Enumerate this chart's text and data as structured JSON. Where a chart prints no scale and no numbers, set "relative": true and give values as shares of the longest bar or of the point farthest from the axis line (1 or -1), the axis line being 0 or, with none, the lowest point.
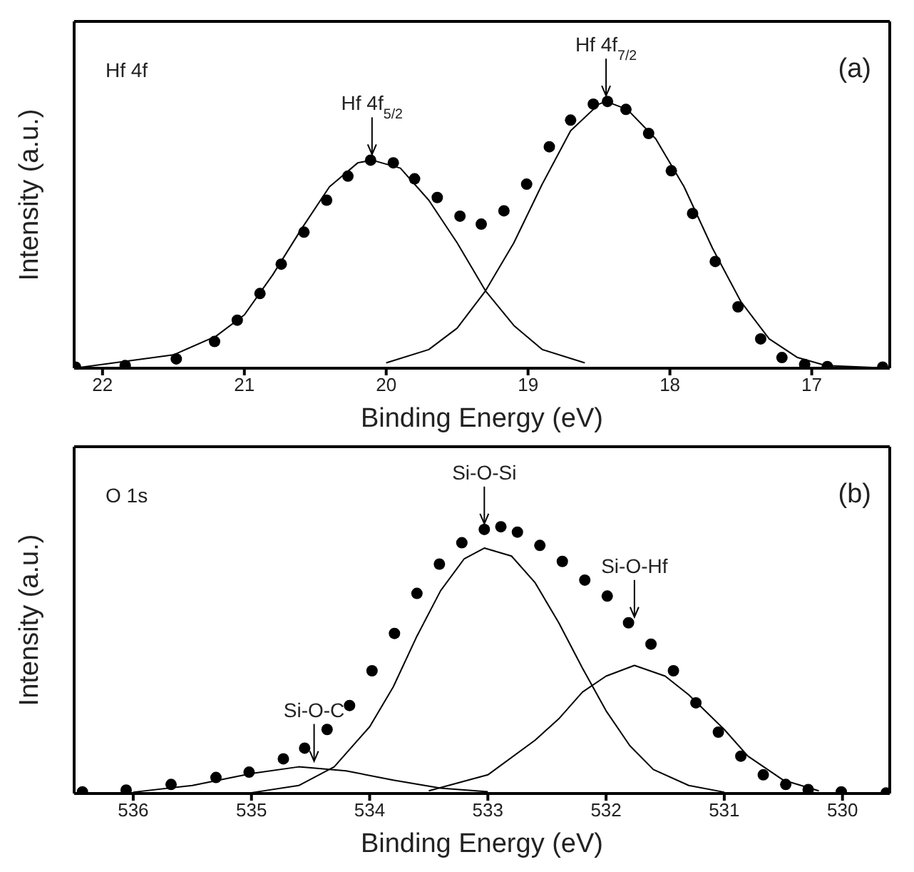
{
  "chart_data": [
    {
      "type": "scatter",
      "relative": true,
      "xlabel": "Binding Energy (eV)",
      "ylabel": "Intensity (a.u.)",
      "xlim": [
        22.2,
        16.45
      ],
      "xticks": [
        22,
        21,
        20,
        19,
        18,
        17
      ],
      "annotations": [
        "Hf 4f",
        "(a)",
        {
          "text": "Hf 4f$_{5/2}$",
          "x": 20.1,
          "y": 0.78
        },
        {
          "text": "Hf 4f$_{7/2}$",
          "x": 18.45,
          "y": 1.0
        }
      ],
      "series": [
        {
          "marker": "circle",
          "color": "#000000",
          "x": [
            22.19,
            21.84,
            21.48,
            21.21,
            21.05,
            20.89,
            20.74,
            20.58,
            20.42,
            20.27,
            20.11,
            19.95,
            19.8,
            19.64,
            19.48,
            19.33,
            19.17,
            19.01,
            18.85,
            18.7,
            18.54,
            18.44,
            18.31,
            18.15,
            17.99,
            17.84,
            17.68,
            17.52,
            17.36,
            17.21,
            17.05,
            16.89,
            16.5
          ],
          "values": [
            0.004,
            0.01,
            0.035,
            0.1,
            0.18,
            0.28,
            0.39,
            0.51,
            0.63,
            0.72,
            0.78,
            0.77,
            0.71,
            0.64,
            0.57,
            0.54,
            0.59,
            0.69,
            0.83,
            0.93,
            0.99,
            1.0,
            0.97,
            0.88,
            0.74,
            0.58,
            0.4,
            0.23,
            0.11,
            0.04,
            0.014,
            0.006,
            0.004
          ]
        },
        {
          "type": "line",
          "color": "#000000",
          "x": [
            22.2,
            21.5,
            21.2,
            21.0,
            20.8,
            20.6,
            20.4,
            20.2,
            20.1,
            19.9,
            19.7,
            19.5,
            19.3,
            19.1,
            18.9,
            18.6
          ],
          "values": [
            0.0,
            0.05,
            0.12,
            0.2,
            0.35,
            0.52,
            0.68,
            0.77,
            0.78,
            0.75,
            0.63,
            0.47,
            0.29,
            0.16,
            0.07,
            0.02
          ]
        },
        {
          "type": "line",
          "color": "#000000",
          "x": [
            20.0,
            19.7,
            19.5,
            19.3,
            19.1,
            18.9,
            18.7,
            18.5,
            18.45,
            18.3,
            18.1,
            17.9,
            17.7,
            17.5,
            17.3,
            17.1,
            16.9,
            16.45
          ],
          "values": [
            0.02,
            0.07,
            0.15,
            0.29,
            0.47,
            0.69,
            0.89,
            0.99,
            1.0,
            0.97,
            0.86,
            0.68,
            0.45,
            0.25,
            0.11,
            0.04,
            0.01,
            0.0
          ]
        }
      ]
    },
    {
      "type": "scatter",
      "relative": true,
      "xlabel": "Binding Energy (eV)",
      "ylabel": "Intensity (a.u.)",
      "xlim": [
        536.5,
        529.6
      ],
      "xticks": [
        536,
        535,
        534,
        533,
        532,
        531,
        530
      ],
      "annotations": [
        "O 1s",
        "(b)",
        {
          "text": "Si-O-C",
          "x": 534.47,
          "y": 0.1
        },
        {
          "text": "Si-O-Si",
          "x": 533.03,
          "y": 0.99
        },
        {
          "text": "Si-O-Hf",
          "x": 531.76,
          "y": 0.64
        }
      ],
      "series": [
        {
          "marker": "circle",
          "color": "#000000",
          "x": [
            536.43,
            536.06,
            535.68,
            535.3,
            535.02,
            534.73,
            534.55,
            534.36,
            534.17,
            533.98,
            533.79,
            533.6,
            533.41,
            533.22,
            533.03,
            532.89,
            532.75,
            532.56,
            532.37,
            532.18,
            531.99,
            531.81,
            531.62,
            531.43,
            531.24,
            531.05,
            530.86,
            530.67,
            530.48,
            530.29,
            530.01,
            529.63
          ],
          "values": [
            0.006,
            0.013,
            0.034,
            0.06,
            0.08,
            0.13,
            0.17,
            0.24,
            0.33,
            0.46,
            0.6,
            0.75,
            0.86,
            0.94,
            0.99,
            1.0,
            0.98,
            0.93,
            0.87,
            0.8,
            0.74,
            0.64,
            0.56,
            0.46,
            0.34,
            0.23,
            0.14,
            0.07,
            0.034,
            0.015,
            0.006,
            0.002
          ]
        },
        {
          "type": "line",
          "color": "#000000",
          "x": [
            536.0,
            535.5,
            535.0,
            534.6,
            534.2,
            533.8,
            533.4,
            533.0
          ],
          "values": [
            0.005,
            0.03,
            0.075,
            0.1,
            0.085,
            0.05,
            0.02,
            0.007
          ]
        },
        {
          "type": "line",
          "color": "#000000",
          "x": [
            535.0,
            534.6,
            534.3,
            534.0,
            533.8,
            533.6,
            533.4,
            533.2,
            533.03,
            532.8,
            532.6,
            532.4,
            532.2,
            532.0,
            531.8,
            531.6,
            531.3,
            531.0
          ],
          "values": [
            0.003,
            0.03,
            0.1,
            0.25,
            0.4,
            0.59,
            0.76,
            0.88,
            0.92,
            0.89,
            0.79,
            0.64,
            0.47,
            0.31,
            0.18,
            0.09,
            0.03,
            0.005
          ]
        },
        {
          "type": "line",
          "color": "#000000",
          "x": [
            533.5,
            533.0,
            532.6,
            532.4,
            532.2,
            532.0,
            531.76,
            531.5,
            531.3,
            531.0,
            530.8,
            530.5,
            530.2
          ],
          "values": [
            0.01,
            0.07,
            0.2,
            0.28,
            0.38,
            0.44,
            0.48,
            0.44,
            0.37,
            0.24,
            0.14,
            0.05,
            0.01
          ]
        }
      ]
    }
  ]
}
